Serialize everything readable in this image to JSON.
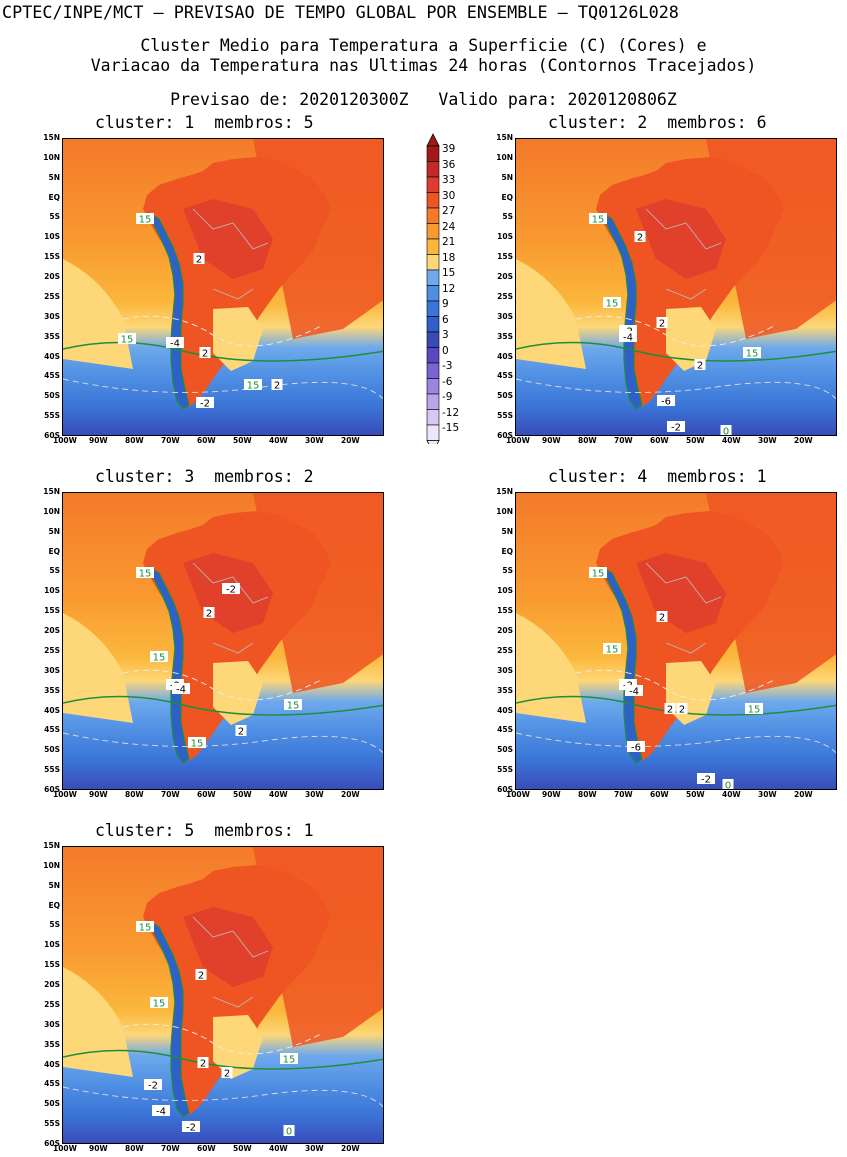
{
  "header": {
    "line1": "CPTEC/INPE/MCT – PREVISAO DE TEMPO GLOBAL POR ENSEMBLE – TQ0126L028",
    "line2": "Cluster Medio para Temperatura a Superficie (C) (Cores) e",
    "line3": "Variacao da Temperatura nas Ultimas 24 horas (Contornos Tracejados)",
    "line4": "Previsao de: 2020120300Z   Valido para: 2020120806Z"
  },
  "panels": [
    {
      "title": "cluster: 1  membros: 5",
      "labels": [
        "15",
        "15",
        "15",
        "2",
        "2",
        "2",
        "-4",
        "-2"
      ]
    },
    {
      "title": "cluster: 2  membros: 6",
      "labels": [
        "15",
        "15",
        "15",
        "2",
        "2",
        "2",
        "-2",
        "-4",
        "-6",
        "-2",
        "0"
      ]
    },
    {
      "title": "cluster: 3  membros: 2",
      "labels": [
        "15",
        "15",
        "15",
        "15",
        "-2",
        "2",
        "-2",
        "-4",
        "2"
      ]
    },
    {
      "title": "cluster: 4  membros: 1",
      "labels": [
        "15",
        "15",
        "15",
        "2",
        "2",
        "2",
        "-2",
        "-4",
        "-6",
        "-2",
        "0"
      ]
    },
    {
      "title": "cluster: 5  membros: 1",
      "labels": [
        "15",
        "15",
        "15",
        "2",
        "2",
        "2",
        "-2",
        "-4",
        "-2",
        "0"
      ]
    }
  ],
  "axes": {
    "lat_ticks": [
      "15N",
      "10N",
      "5N",
      "EQ",
      "5S",
      "10S",
      "15S",
      "20S",
      "25S",
      "30S",
      "35S",
      "40S",
      "45S",
      "50S",
      "55S",
      "60S"
    ],
    "lon_ticks": [
      "100W",
      "90W",
      "80W",
      "70W",
      "60W",
      "50W",
      "40W",
      "30W",
      "20W"
    ]
  },
  "colorbar": {
    "levels": [
      "39",
      "36",
      "33",
      "30",
      "27",
      "24",
      "21",
      "18",
      "15",
      "12",
      "9",
      "6",
      "3",
      "0",
      "-3",
      "-6",
      "-9",
      "-12",
      "-15"
    ],
    "colors": [
      "#a01a1a",
      "#c22a2a",
      "#dd3c2e",
      "#ee5522",
      "#f47a2a",
      "#f99a30",
      "#fbb73c",
      "#fdd778",
      "#6ea9ec",
      "#4f8fe3",
      "#3a74d6",
      "#2f5fc9",
      "#3949b8",
      "#5a48c2",
      "#7a63d2",
      "#9a85df",
      "#b8a6ea",
      "#d6c8f3",
      "#ece6fb"
    ]
  }
}
